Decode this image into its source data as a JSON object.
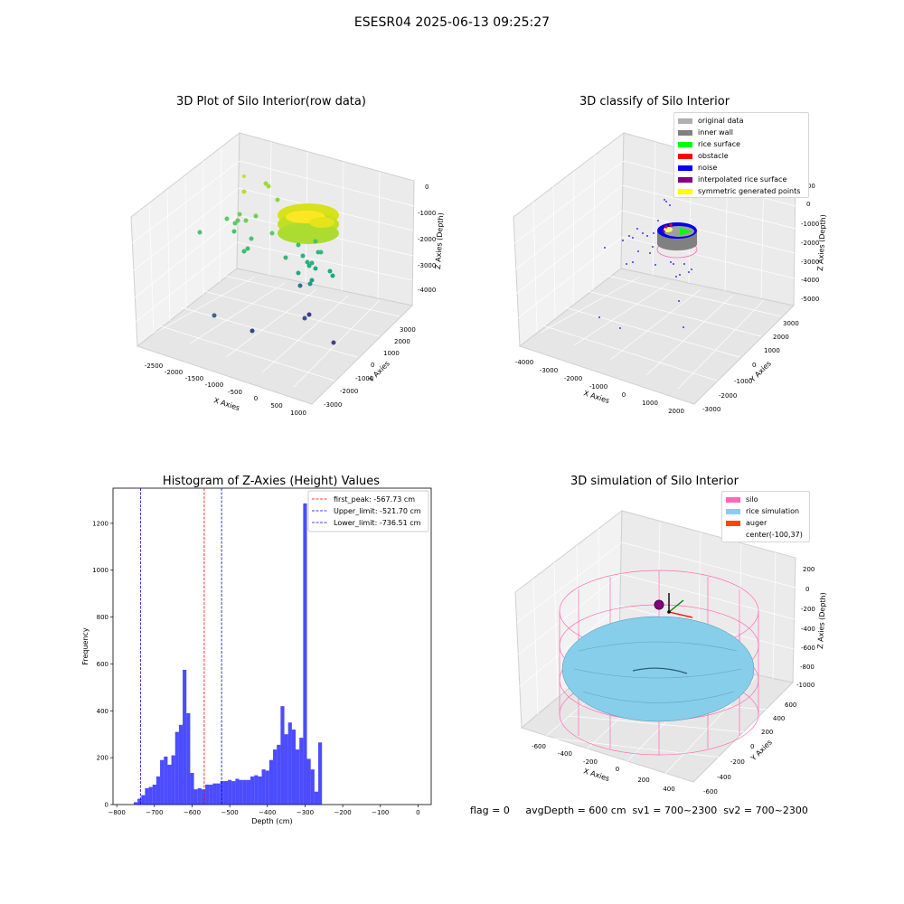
{
  "suptitle": "ESESR04 2025-06-13 09:25:27",
  "panels": {
    "raw": {
      "title": "3D Plot of Silo Interior(row data)",
      "xlabel": "X Axies",
      "ylabel": "Y Axies",
      "zlabel": "Z Axies (Depth)",
      "xticks": [
        "-2500",
        "-2000",
        "-1500",
        "-1000",
        "-500",
        "0",
        "500",
        "1000"
      ],
      "yticks": [
        "-3000",
        "-2000",
        "-1000",
        "0",
        "1000",
        "2000",
        "3000"
      ],
      "zticks": [
        "0",
        "-1000",
        "-2000",
        "-3000",
        "-4000"
      ]
    },
    "classify": {
      "title": "3D classify of Silo Interior",
      "xlabel": "X Axies",
      "ylabel": "Y Axies",
      "zlabel": "Z Axies (Depth)",
      "xticks": [
        "-4000",
        "-3000",
        "-2000",
        "-1000",
        "0",
        "1000",
        "2000"
      ],
      "yticks": [
        "-3000",
        "-2000",
        "-1000",
        "0",
        "1000",
        "2000",
        "3000"
      ],
      "zticks": [
        "1000",
        "0",
        "-1000",
        "-2000",
        "-3000",
        "-4000",
        "-5000"
      ],
      "legend": [
        {
          "label": "original data",
          "color": "#b0b0b0"
        },
        {
          "label": "inner wall",
          "color": "#808080"
        },
        {
          "label": "rice surface",
          "color": "#00ff00"
        },
        {
          "label": "obstacle",
          "color": "#ff0000"
        },
        {
          "label": "noise",
          "color": "#0000ff"
        },
        {
          "label": "interpolated rice surface",
          "color": "#800080"
        },
        {
          "label": "symmetric generated points",
          "color": "#ffff00"
        }
      ]
    },
    "sim": {
      "title": "3D simulation of Silo Interior",
      "xlabel": "X Axies",
      "ylabel": "Y Axies",
      "zlabel": "Z Axies (Depth)",
      "xticks": [
        "-600",
        "-400",
        "-200",
        "0",
        "200",
        "400"
      ],
      "yticks": [
        "-600",
        "-400",
        "-200",
        "0",
        "200",
        "400",
        "600"
      ],
      "zticks": [
        "200",
        "0",
        "-200",
        "-400",
        "-600",
        "-800",
        "-1000"
      ],
      "legend": [
        {
          "label": "silo",
          "color": "#ff69b4"
        },
        {
          "label": "rice simulation",
          "color": "#87ceeb"
        },
        {
          "label": "auger",
          "color": "#ff4500"
        },
        {
          "label": "center(-100,37)",
          "color": "transparent"
        }
      ],
      "status_text": "flag = 0     avgDepth = 600 cm  sv1 = 700~2300  sv2 = 700~2300"
    }
  },
  "chart_data": [
    {
      "type": "scatter",
      "title": "3D Plot of Silo Interior(row data)",
      "xlabel": "X Axies",
      "ylabel": "Y Axies",
      "zlabel": "Z Axies (Depth)",
      "xlim": [
        -2800,
        1100
      ],
      "ylim": [
        -3200,
        3500
      ],
      "zlim": [
        -4500,
        200
      ]
    },
    {
      "type": "scatter",
      "title": "3D classify of Silo Interior",
      "xlabel": "X Axies",
      "ylabel": "Y Axies",
      "zlabel": "Z Axies (Depth)",
      "xlim": [
        -4200,
        2300
      ],
      "ylim": [
        -3200,
        3500
      ],
      "zlim": [
        -5300,
        1200
      ]
    },
    {
      "type": "bar",
      "title": "Histogram of Z-Axies (Height) Values",
      "xlabel": "Depth (cm)",
      "ylabel": "Frequency",
      "xlim": [
        -810,
        35
      ],
      "ylim": [
        0,
        1350
      ],
      "xticks": [
        -800,
        -700,
        -600,
        -500,
        -400,
        -300,
        -200,
        -100,
        0
      ],
      "yticks": [
        0,
        200,
        400,
        600,
        800,
        1000,
        1200
      ],
      "bin_start": -755,
      "bin_width": 10,
      "color": "#0000ff",
      "values": [
        10,
        25,
        40,
        70,
        75,
        85,
        120,
        190,
        205,
        170,
        210,
        310,
        340,
        575,
        390,
        135,
        65,
        70,
        65,
        85,
        85,
        90,
        90,
        100,
        100,
        105,
        100,
        110,
        105,
        105,
        105,
        120,
        125,
        120,
        150,
        145,
        190,
        235,
        255,
        420,
        300,
        350,
        320,
        235,
        285,
        1285,
        195,
        150,
        55,
        265
      ],
      "vlines": [
        {
          "label": "first_peak: -567.73 cm",
          "x": -567.73,
          "color": "#ff0000"
        },
        {
          "label": "Upper_limit: -521.70 cm",
          "x": -521.7,
          "color": "#0000ff"
        },
        {
          "label": "Lower_limit: -736.51 cm",
          "x": -736.51,
          "color": "#0000ff"
        }
      ]
    },
    {
      "type": "scatter",
      "title": "3D simulation of Silo Interior",
      "xlabel": "X Axies",
      "ylabel": "Y Axies",
      "zlabel": "Z Axies (Depth)",
      "xlim": [
        -750,
        500
      ],
      "ylim": [
        -650,
        650
      ],
      "zlim": [
        -1050,
        300
      ]
    }
  ]
}
